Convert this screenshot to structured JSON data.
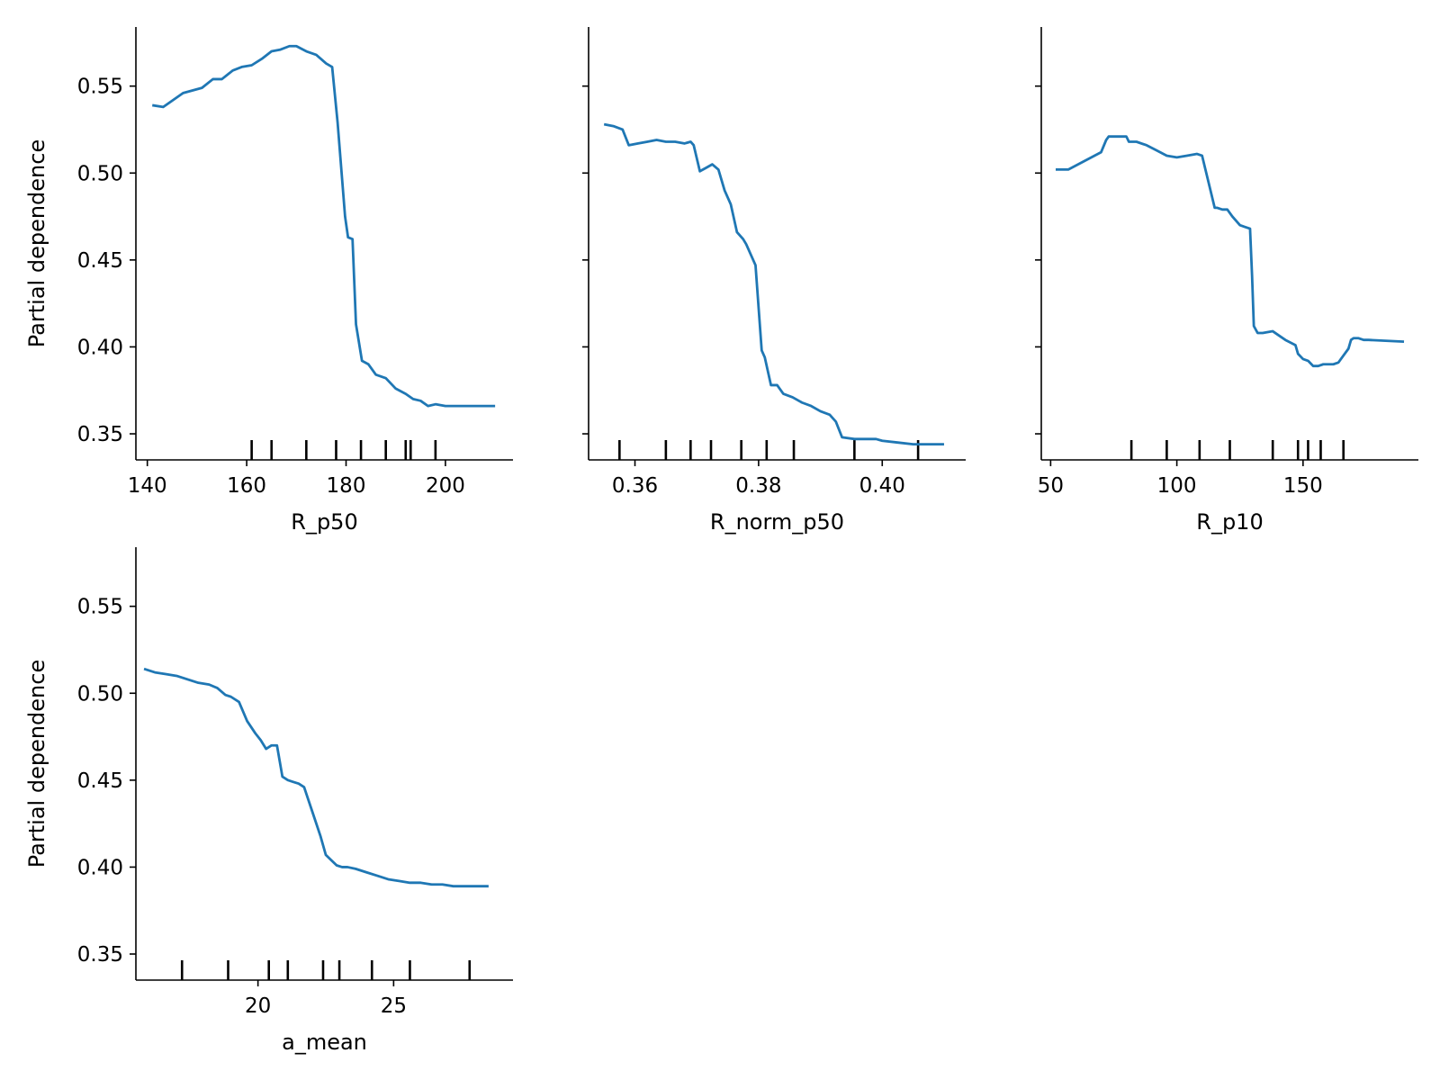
{
  "chart_data": [
    {
      "type": "line",
      "xlabel": "R_p50",
      "ylabel": "Partial dependence",
      "xlim": [
        137.7,
        213.6
      ],
      "ylim": [
        0.335,
        0.584
      ],
      "xticks": [
        140,
        160,
        180,
        200
      ],
      "yticks": [
        0.35,
        0.4,
        0.45,
        0.5,
        0.55
      ],
      "show_yticklabels": true,
      "color": "#1f77b4",
      "x": [
        141,
        143.2,
        147.2,
        151,
        153.2,
        155,
        157.2,
        159,
        161,
        163.2,
        165,
        166.8,
        168.6,
        170,
        172,
        174,
        176,
        177.2,
        178.3,
        179.8,
        180.4,
        181.3,
        182,
        183.2,
        184.5,
        186,
        188,
        190,
        192,
        193.5,
        195,
        196.5,
        198,
        200,
        205,
        210
      ],
      "y": [
        0.539,
        0.538,
        0.546,
        0.549,
        0.554,
        0.554,
        0.559,
        0.561,
        0.562,
        0.566,
        0.57,
        0.571,
        0.573,
        0.573,
        0.57,
        0.568,
        0.563,
        0.561,
        0.529,
        0.475,
        0.463,
        0.462,
        0.413,
        0.392,
        0.39,
        0.384,
        0.382,
        0.376,
        0.373,
        0.37,
        0.369,
        0.366,
        0.367,
        0.366,
        0.366,
        0.366
      ],
      "rug": [
        161,
        165,
        172,
        178,
        183,
        188,
        192,
        193,
        198
      ]
    },
    {
      "type": "line",
      "xlabel": "R_norm_p50",
      "ylabel": "",
      "xlim": [
        0.3525,
        0.4135
      ],
      "ylim": [
        0.335,
        0.584
      ],
      "xticks": [
        0.36,
        0.38,
        0.4
      ],
      "yticks": [
        0.35,
        0.4,
        0.45,
        0.5,
        0.55
      ],
      "show_yticklabels": false,
      "color": "#1f77b4",
      "x": [
        0.355,
        0.3565,
        0.358,
        0.359,
        0.3605,
        0.362,
        0.3635,
        0.365,
        0.3665,
        0.368,
        0.369,
        0.3695,
        0.3705,
        0.371,
        0.3715,
        0.3725,
        0.3735,
        0.3745,
        0.3755,
        0.3765,
        0.3775,
        0.378,
        0.3795,
        0.3805,
        0.381,
        0.382,
        0.383,
        0.384,
        0.3855,
        0.387,
        0.3885,
        0.39,
        0.3915,
        0.3925,
        0.3935,
        0.3955,
        0.397,
        0.399,
        0.4,
        0.4025,
        0.405,
        0.4075,
        0.41
      ],
      "y": [
        0.528,
        0.527,
        0.525,
        0.516,
        0.517,
        0.518,
        0.519,
        0.518,
        0.518,
        0.517,
        0.518,
        0.516,
        0.501,
        0.502,
        0.503,
        0.505,
        0.502,
        0.49,
        0.482,
        0.466,
        0.462,
        0.459,
        0.447,
        0.398,
        0.394,
        0.378,
        0.378,
        0.373,
        0.371,
        0.368,
        0.366,
        0.363,
        0.361,
        0.357,
        0.348,
        0.347,
        0.347,
        0.347,
        0.346,
        0.345,
        0.344,
        0.344,
        0.344
      ],
      "rug": [
        0.3575,
        0.365,
        0.369,
        0.3723,
        0.3772,
        0.3813,
        0.3857,
        0.3955,
        0.4058
      ]
    },
    {
      "type": "line",
      "xlabel": "R_p10",
      "ylabel": "",
      "xlim": [
        46.3,
        195.7
      ],
      "ylim": [
        0.335,
        0.584
      ],
      "xticks": [
        50,
        100,
        150
      ],
      "yticks": [
        0.35,
        0.4,
        0.45,
        0.5,
        0.55
      ],
      "show_yticklabels": false,
      "color": "#1f77b4",
      "x": [
        52,
        57,
        70,
        72,
        73,
        77,
        80,
        81,
        84,
        88,
        92,
        96,
        100,
        104,
        108,
        110,
        111,
        113,
        114,
        115,
        116,
        118,
        120,
        122,
        125,
        127,
        129,
        129.8,
        130.5,
        132,
        134,
        138,
        140,
        143,
        147,
        148,
        150,
        152,
        154,
        156,
        158,
        160,
        162,
        164,
        166,
        168,
        169,
        170,
        171,
        172,
        174,
        176,
        190
      ],
      "y": [
        0.502,
        0.502,
        0.512,
        0.519,
        0.521,
        0.521,
        0.521,
        0.518,
        0.518,
        0.516,
        0.513,
        0.51,
        0.509,
        0.51,
        0.511,
        0.51,
        0.504,
        0.492,
        0.486,
        0.48,
        0.48,
        0.479,
        0.479,
        0.475,
        0.47,
        0.469,
        0.468,
        0.441,
        0.412,
        0.408,
        0.408,
        0.409,
        0.407,
        0.404,
        0.401,
        0.396,
        0.393,
        0.392,
        0.389,
        0.389,
        0.39,
        0.39,
        0.39,
        0.391,
        0.395,
        0.399,
        0.404,
        0.405,
        0.405,
        0.405,
        0.404,
        0.404,
        0.403
      ],
      "rug": [
        82,
        96,
        109,
        121,
        138,
        148,
        152,
        157,
        166
      ]
    },
    {
      "type": "line",
      "xlabel": "a_mean",
      "ylabel": "Partial dependence",
      "xlim": [
        15.5,
        29.4
      ],
      "ylim": [
        0.335,
        0.584
      ],
      "xticks": [
        20,
        25
      ],
      "yticks": [
        0.35,
        0.4,
        0.45,
        0.5,
        0.55
      ],
      "show_yticklabels": true,
      "color": "#1f77b4",
      "x": [
        15.8,
        16.2,
        16.6,
        17.0,
        17.4,
        17.8,
        18.2,
        18.5,
        18.8,
        19.0,
        19.3,
        19.6,
        19.9,
        20.1,
        20.3,
        20.5,
        20.7,
        20.9,
        21.1,
        21.3,
        21.5,
        21.7,
        22.0,
        22.3,
        22.5,
        22.7,
        22.9,
        23.1,
        23.3,
        23.6,
        24.0,
        24.4,
        24.8,
        25.2,
        25.6,
        26.0,
        26.4,
        26.8,
        27.2,
        27.6,
        28.0,
        28.5
      ],
      "y": [
        0.514,
        0.512,
        0.511,
        0.51,
        0.508,
        0.506,
        0.505,
        0.503,
        0.499,
        0.498,
        0.495,
        0.484,
        0.477,
        0.473,
        0.468,
        0.47,
        0.47,
        0.452,
        0.45,
        0.449,
        0.448,
        0.446,
        0.432,
        0.418,
        0.407,
        0.404,
        0.401,
        0.4,
        0.4,
        0.399,
        0.397,
        0.395,
        0.393,
        0.392,
        0.391,
        0.391,
        0.39,
        0.39,
        0.389,
        0.389,
        0.389,
        0.389
      ],
      "rug": [
        17.2,
        18.9,
        20.4,
        21.1,
        22.4,
        23.0,
        24.2,
        25.6,
        27.8
      ]
    }
  ]
}
